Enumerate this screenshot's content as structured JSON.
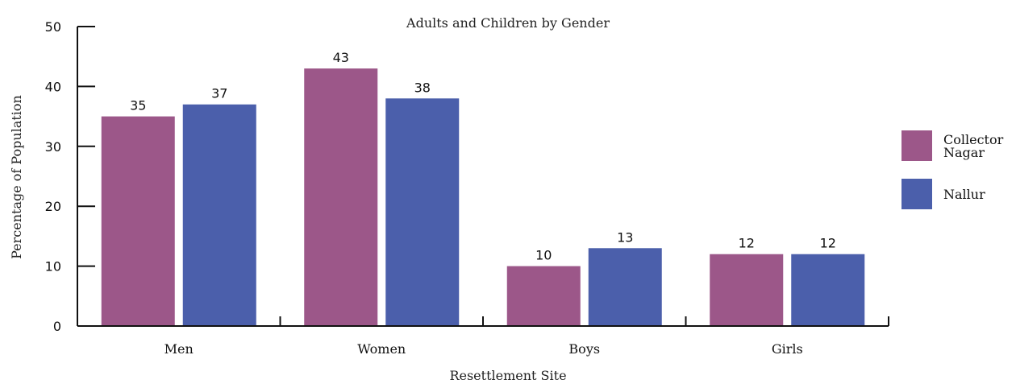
{
  "chart_data": {
    "type": "bar",
    "title": "Adults and Children by Gender",
    "xlabel": "Resettlement Site",
    "ylabel": "Percentage of Population",
    "categories": [
      "Men",
      "Women",
      "Boys",
      "Girls"
    ],
    "series": [
      {
        "name": "Collector Nagar",
        "legend_lines": [
          "Collector",
          "Nagar"
        ],
        "values": [
          35,
          43,
          10,
          12
        ],
        "color": "#9c5789"
      },
      {
        "name": "Nallur",
        "legend_lines": [
          "Nallur"
        ],
        "values": [
          37,
          38,
          13,
          12
        ],
        "color": "#4b5fab"
      }
    ],
    "yticks": [
      0,
      10,
      20,
      30,
      40,
      50
    ],
    "ylim": [
      0,
      50
    ],
    "grid": false,
    "legend_position": "right"
  }
}
